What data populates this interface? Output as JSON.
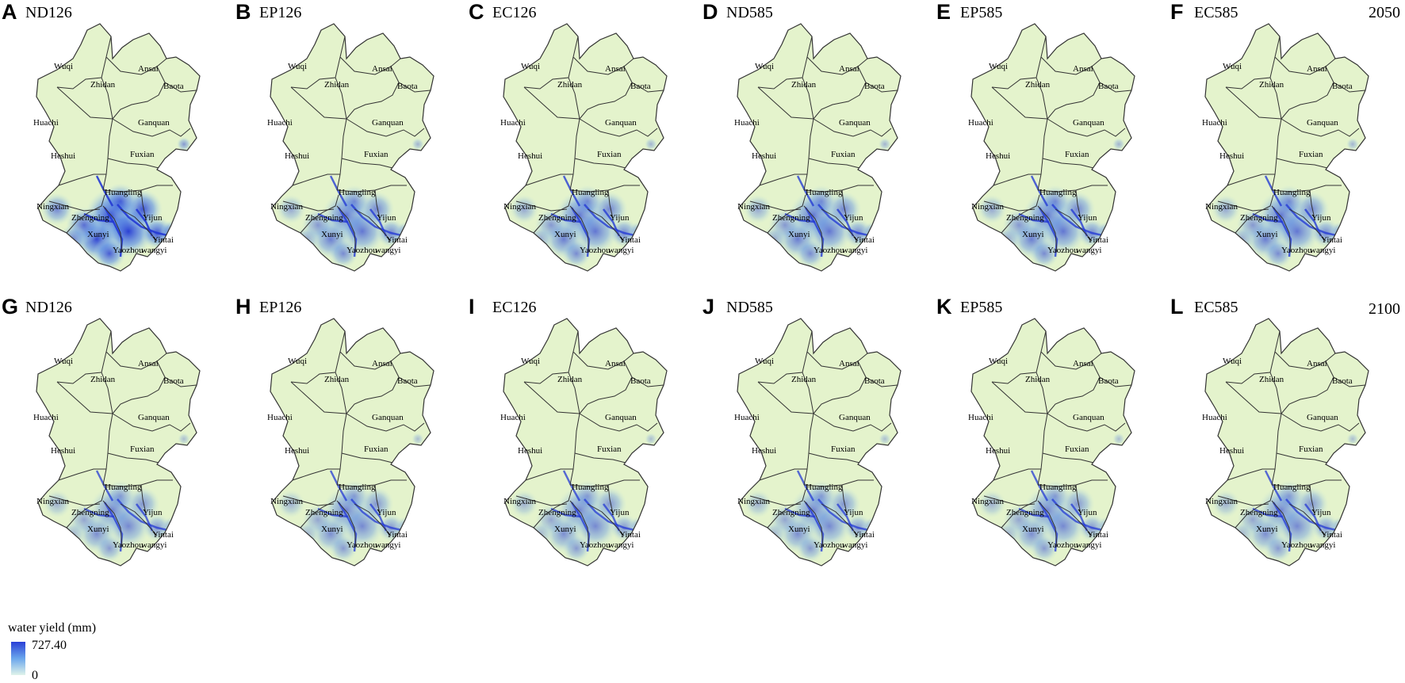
{
  "colors": {
    "low": "#e4f3cc",
    "high": "#2338d4",
    "border": "#333333"
  },
  "panels": [
    {
      "letter": "A",
      "scenario": "ND126",
      "intensity": 1.0
    },
    {
      "letter": "B",
      "scenario": "EP126",
      "intensity": 0.7
    },
    {
      "letter": "C",
      "scenario": "EC126",
      "intensity": 0.7
    },
    {
      "letter": "D",
      "scenario": "ND585",
      "intensity": 0.7
    },
    {
      "letter": "E",
      "scenario": "EP585",
      "intensity": 0.7
    },
    {
      "letter": "F",
      "scenario": "EC585",
      "intensity": 0.7
    },
    {
      "letter": "G",
      "scenario": "ND126",
      "intensity": 0.6
    },
    {
      "letter": "H",
      "scenario": "EP126",
      "intensity": 0.6
    },
    {
      "letter": "I",
      "scenario": "EC126",
      "intensity": 0.6
    },
    {
      "letter": "J",
      "scenario": "ND585",
      "intensity": 0.6
    },
    {
      "letter": "K",
      "scenario": "EP585",
      "intensity": 0.6
    },
    {
      "letter": "L",
      "scenario": "EC585",
      "intensity": 0.6
    }
  ],
  "years": [
    "2050",
    "2100"
  ],
  "counties": [
    "Wuqi",
    "Zhidan",
    "Ansai",
    "Baota",
    "Huachi",
    "Ganquan",
    "Heshui",
    "Fuxian",
    "Huangling",
    "Ningxian",
    "Zhengning",
    "Yijun",
    "Xunyi",
    "Yintai",
    "Yaozhou",
    "wangyi"
  ],
  "legend": {
    "title": "water yield (mm)",
    "max": "727.40",
    "min": "0"
  }
}
